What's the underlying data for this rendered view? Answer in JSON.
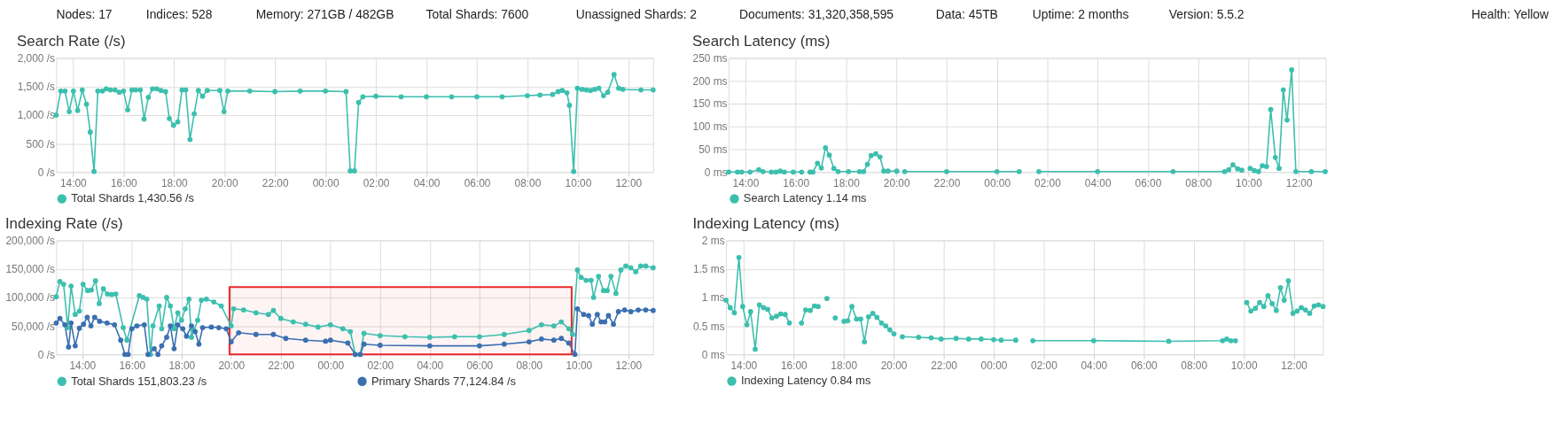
{
  "chart_data": [
    {
      "type": "other",
      "annotations": [
        "Nodes: 17",
        "Indices: 528",
        "Memory: 271GB / 482GB",
        "Total Shards: 7600",
        "Unassigned Shards: 2",
        "Documents: 31,320,358,595",
        "Data: 45TB",
        "Uptime: 2 months",
        "Version: 5.5.2",
        "Health: Yellow"
      ]
    },
    {
      "type": "line",
      "title": "Search Rate (/s)",
      "marker": "circle",
      "line_style": "solid",
      "grid": true,
      "legend": "bottom left",
      "xlim": [
        "2000-01-01T13:20",
        "2000-01-02T12:59"
      ],
      "ylim": [
        0,
        2000
      ],
      "xticks": [
        {
          "value": "2000-01-01T14:00",
          "label": "14:00"
        },
        {
          "value": "2000-01-01T16:00",
          "label": "16:00"
        },
        {
          "value": "2000-01-01T18:00",
          "label": "18:00"
        },
        {
          "value": "2000-01-01T20:00",
          "label": "20:00"
        },
        {
          "value": "2000-01-01T22:00",
          "label": "22:00"
        },
        {
          "value": "2000-01-02T00:00",
          "label": "00:00"
        },
        {
          "value": "2000-01-02T02:00",
          "label": "02:00"
        },
        {
          "value": "2000-01-02T04:00",
          "label": "04:00"
        },
        {
          "value": "2000-01-02T06:00",
          "label": "06:00"
        },
        {
          "value": "2000-01-02T08:00",
          "label": "08:00"
        },
        {
          "value": "2000-01-02T10:00",
          "label": "10:00"
        },
        {
          "value": "2000-01-02T12:00",
          "label": "12:00"
        }
      ],
      "yticks": [
        {
          "value": 0,
          "label": "0 /s"
        },
        {
          "value": 500,
          "label": "500 /s"
        },
        {
          "value": 1000,
          "label": "1,000 /s"
        },
        {
          "value": 1500,
          "label": "1,500 /s"
        },
        {
          "value": 2000,
          "label": "2,000 /s"
        }
      ],
      "x": [
        "2000-01-01T13:20",
        "2000-01-01T13:31",
        "2000-01-01T13:41",
        "2000-01-01T13:51",
        "2000-01-01T14:01",
        "2000-01-01T14:11",
        "2000-01-01T14:22",
        "2000-01-01T14:32",
        "2000-01-01T14:41",
        "2000-01-01T14:50",
        "2000-01-01T14:59",
        "2000-01-01T15:10",
        "2000-01-01T15:19",
        "2000-01-01T15:29",
        "2000-01-01T15:40",
        "2000-01-01T15:50",
        "2000-01-01T16:00",
        "2000-01-01T16:10",
        "2000-01-01T16:20",
        "2000-01-01T16:29",
        "2000-01-01T16:40",
        "2000-01-01T16:49",
        "2000-01-01T16:59",
        "2000-01-01T17:09",
        "2000-01-01T17:19",
        "2000-01-01T17:29",
        "2000-01-01T17:40",
        "2000-01-01T17:49",
        "2000-01-01T17:59",
        "2000-01-01T18:09",
        "2000-01-01T18:19",
        "2000-01-01T18:28",
        "2000-01-01T18:38",
        "2000-01-01T18:48",
        "2000-01-01T18:58",
        "2000-01-01T19:08",
        "2000-01-01T19:19",
        "2000-01-01T19:49",
        "2000-01-01T19:59",
        "2000-01-01T20:08",
        "2000-01-01T21:00",
        "2000-01-01T22:00",
        "2000-01-01T23:00",
        "2000-01-02T00:00",
        "2000-01-02T00:49",
        "2000-01-02T00:59",
        "2000-01-02T01:09",
        "2000-01-02T01:19",
        "2000-01-02T01:29",
        "2000-01-02T02:00",
        "2000-01-02T03:00",
        "2000-01-02T04:00",
        "2000-01-02T05:00",
        "2000-01-02T06:00",
        "2000-01-02T07:00",
        "2000-01-02T08:00",
        "2000-01-02T08:30",
        "2000-01-02T09:00",
        "2000-01-02T09:13",
        "2000-01-02T09:23",
        "2000-01-02T09:34",
        "2000-01-02T09:40",
        "2000-01-02T09:50",
        "2000-01-02T09:59",
        "2000-01-02T10:10",
        "2000-01-02T10:20",
        "2000-01-02T10:30",
        "2000-01-02T10:40",
        "2000-01-02T10:50",
        "2000-01-02T11:01",
        "2000-01-02T11:11",
        "2000-01-02T11:26",
        "2000-01-02T11:37",
        "2000-01-02T11:47",
        "2000-01-02T12:30",
        "2000-01-02T12:59"
      ],
      "series": [
        {
          "name": "Total Shards 1,430.56 /s",
          "color": "#3cbfae",
          "values": [
            1000,
            1420,
            1420,
            1060,
            1420,
            1080,
            1440,
            1190,
            700,
            10,
            1420,
            1420,
            1460,
            1440,
            1440,
            1400,
            1420,
            1090,
            1440,
            1440,
            1440,
            930,
            1310,
            1460,
            1460,
            1430,
            1410,
            940,
            820,
            880,
            1440,
            1440,
            570,
            1020,
            1430,
            1330,
            1430,
            1430,
            1060,
            1420,
            1420,
            1410,
            1420,
            1420,
            1410,
            20,
            20,
            1220,
            1320,
            1330,
            1320,
            1320,
            1320,
            1320,
            1320,
            1340,
            1350,
            1360,
            1410,
            1430,
            1390,
            1170,
            10,
            1470,
            1450,
            1440,
            1430,
            1450,
            1470,
            1340,
            1400,
            1710,
            1470,
            1450,
            1440,
            1440
          ]
        }
      ]
    },
    {
      "type": "line",
      "title": "Search Latency (ms)",
      "marker": "circle",
      "line_style": "solid",
      "grid": true,
      "legend": "bottom left",
      "xlim": [
        "2000-01-01T13:20",
        "2000-01-02T13:04"
      ],
      "ylim": [
        0,
        250
      ],
      "xticks": [
        {
          "value": "2000-01-01T14:00",
          "label": "14:00"
        },
        {
          "value": "2000-01-01T16:00",
          "label": "16:00"
        },
        {
          "value": "2000-01-01T18:00",
          "label": "18:00"
        },
        {
          "value": "2000-01-01T20:00",
          "label": "20:00"
        },
        {
          "value": "2000-01-01T22:00",
          "label": "22:00"
        },
        {
          "value": "2000-01-02T00:00",
          "label": "00:00"
        },
        {
          "value": "2000-01-02T02:00",
          "label": "02:00"
        },
        {
          "value": "2000-01-02T04:00",
          "label": "04:00"
        },
        {
          "value": "2000-01-02T06:00",
          "label": "06:00"
        },
        {
          "value": "2000-01-02T08:00",
          "label": "08:00"
        },
        {
          "value": "2000-01-02T10:00",
          "label": "10:00"
        },
        {
          "value": "2000-01-02T12:00",
          "label": "12:00"
        }
      ],
      "yticks": [
        {
          "value": 0,
          "label": "0 ms"
        },
        {
          "value": 50,
          "label": "50 ms"
        },
        {
          "value": 100,
          "label": "100 ms"
        },
        {
          "value": 150,
          "label": "150 ms"
        },
        {
          "value": 200,
          "label": "200 ms"
        },
        {
          "value": 250,
          "label": "250 ms"
        }
      ],
      "x": [
        "2000-01-01T13:20",
        "2000-01-01T13:41",
        "2000-01-01T13:51",
        "2000-01-01T14:11",
        "2000-01-01T14:32",
        "2000-01-01T14:42",
        "2000-01-01T15:02",
        "2000-01-01T15:13",
        "2000-01-01T15:23",
        "2000-01-01T15:33",
        "2000-01-01T15:54",
        "2000-01-01T16:14",
        "2000-01-01T16:24",
        "2000-01-01T16:34",
        "2000-01-01T16:41",
        "2000-01-01T16:52",
        "2000-01-01T17:01",
        "2000-01-01T17:11",
        "2000-01-01T17:20",
        "2000-01-01T17:31",
        "2000-01-01T17:41",
        "2000-01-01T18:06",
        "2000-01-01T18:32",
        "2000-01-01T18:42",
        "2000-01-01T18:51",
        "2000-01-01T19:00",
        "2000-01-01T19:11",
        "2000-01-01T19:21",
        "2000-01-01T19:30",
        "2000-01-01T19:40",
        "2000-01-01T20:01",
        "2000-01-01T20:10",
        "2000-01-01T20:20",
        "2000-01-01T22:00",
        "2000-01-02T00:00",
        "2000-01-02T00:53",
        "2000-01-02T01:12",
        "2000-01-02T01:40",
        "2000-01-02T04:00",
        "2000-01-02T07:00",
        "2000-01-02T09:03",
        "2000-01-02T09:13",
        "2000-01-02T09:23",
        "2000-01-02T09:34",
        "2000-01-02T09:44",
        "2000-01-02T09:54",
        "2000-01-02T10:04",
        "2000-01-02T10:14",
        "2000-01-02T10:24",
        "2000-01-02T10:33",
        "2000-01-02T10:43",
        "2000-01-02T10:53",
        "2000-01-02T11:04",
        "2000-01-02T11:13",
        "2000-01-02T11:23",
        "2000-01-02T11:32",
        "2000-01-02T11:43",
        "2000-01-02T11:53",
        "2000-01-02T12:30",
        "2000-01-02T13:03"
      ],
      "series": [
        {
          "name": "Search Latency 1.14 ms",
          "color": "#3cbfae",
          "values": [
            0,
            0,
            0,
            0,
            5,
            1,
            0,
            0,
            2,
            0,
            0,
            0,
            null,
            0,
            0,
            19,
            9,
            53,
            37,
            8,
            1,
            1,
            1,
            1,
            17,
            36,
            40,
            33,
            2,
            2,
            2,
            null,
            1,
            1,
            1,
            1,
            null,
            1,
            1,
            1,
            1,
            5,
            16,
            7,
            4,
            null,
            8,
            3,
            1,
            14,
            12,
            137,
            32,
            8,
            180,
            114,
            224,
            1,
            1,
            1
          ]
        }
      ]
    },
    {
      "type": "line",
      "title": "Indexing Rate (/s)",
      "marker": "circle",
      "line_style": "solid",
      "grid": true,
      "legend": "bottom left",
      "xlim": [
        "2000-01-01T12:57",
        "2000-01-02T13:00"
      ],
      "ylim": [
        0,
        200000
      ],
      "xticks": [
        {
          "value": "2000-01-01T14:00",
          "label": "14:00"
        },
        {
          "value": "2000-01-01T16:00",
          "label": "16:00"
        },
        {
          "value": "2000-01-01T18:00",
          "label": "18:00"
        },
        {
          "value": "2000-01-01T20:00",
          "label": "20:00"
        },
        {
          "value": "2000-01-01T22:00",
          "label": "22:00"
        },
        {
          "value": "2000-01-02T00:00",
          "label": "00:00"
        },
        {
          "value": "2000-01-02T02:00",
          "label": "02:00"
        },
        {
          "value": "2000-01-02T04:00",
          "label": "04:00"
        },
        {
          "value": "2000-01-02T06:00",
          "label": "06:00"
        },
        {
          "value": "2000-01-02T08:00",
          "label": "08:00"
        },
        {
          "value": "2000-01-02T10:00",
          "label": "10:00"
        },
        {
          "value": "2000-01-02T12:00",
          "label": "12:00"
        }
      ],
      "yticks": [
        {
          "value": 0,
          "label": "0 /s"
        },
        {
          "value": 50000,
          "label": "50,000 /s"
        },
        {
          "value": 100000,
          "label": "100,000 /s"
        },
        {
          "value": 150000,
          "label": "150,000 /s"
        },
        {
          "value": 200000,
          "label": "200,000 /s"
        }
      ],
      "bands": [
        {
          "axis": "x",
          "from": "2000-01-01T19:56",
          "to": "2000-01-02T09:43",
          "color": "#e8282b"
        }
      ],
      "series": [
        {
          "name": "Total Shards 151,803.23 /s",
          "color": "#3cbfae",
          "x": [
            "2000-01-01T12:57",
            "2000-01-01T13:06",
            "2000-01-01T13:15",
            "2000-01-01T13:25",
            "2000-01-01T13:33",
            "2000-01-01T13:43",
            "2000-01-01T13:53",
            "2000-01-01T14:02",
            "2000-01-01T14:13",
            "2000-01-01T14:22",
            "2000-01-01T14:32",
            "2000-01-01T14:41",
            "2000-01-01T14:51",
            "2000-01-01T15:01",
            "2000-01-01T15:11",
            "2000-01-01T15:21",
            "2000-01-01T15:39",
            "2000-01-01T15:48",
            "2000-01-01T16:18",
            "2000-01-01T16:27",
            "2000-01-01T16:36",
            "2000-01-01T16:45",
            "2000-01-01T16:51",
            "2000-01-01T17:06",
            "2000-01-01T17:12",
            "2000-01-01T17:24",
            "2000-01-01T17:33",
            "2000-01-01T17:42",
            "2000-01-01T17:51",
            "2000-01-01T18:00",
            "2000-01-01T18:09",
            "2000-01-01T18:18",
            "2000-01-01T18:24",
            "2000-01-01T18:30",
            "2000-01-01T18:39",
            "2000-01-01T18:48",
            "2000-01-01T19:00",
            "2000-01-01T19:18",
            "2000-01-01T19:36",
            "2000-01-01T20:00",
            "2000-01-01T20:06",
            "2000-01-01T20:30",
            "2000-01-01T21:00",
            "2000-01-01T21:30",
            "2000-01-01T21:42",
            "2000-01-01T22:00",
            "2000-01-01T22:30",
            "2000-01-01T23:00",
            "2000-01-01T23:30",
            "2000-01-02T00:00",
            "2000-01-02T00:30",
            "2000-01-02T00:48",
            "2000-01-02T01:00",
            "2000-01-02T01:12",
            "2000-01-02T01:21",
            "2000-01-02T02:00",
            "2000-01-02T03:00",
            "2000-01-02T04:00",
            "2000-01-02T05:00",
            "2000-01-02T06:00",
            "2000-01-02T07:00",
            "2000-01-02T08:00",
            "2000-01-02T08:30",
            "2000-01-02T09:00",
            "2000-01-02T09:18",
            "2000-01-02T09:36",
            "2000-01-02T09:45",
            "2000-01-02T09:57",
            "2000-01-02T10:06",
            "2000-01-02T10:18",
            "2000-01-02T10:30",
            "2000-01-02T10:36",
            "2000-01-02T10:48",
            "2000-01-02T11:00",
            "2000-01-02T11:09",
            "2000-01-02T11:18",
            "2000-01-02T11:30",
            "2000-01-02T11:42",
            "2000-01-02T11:54",
            "2000-01-02T12:06",
            "2000-01-02T12:18",
            "2000-01-02T12:30",
            "2000-01-02T12:42",
            "2000-01-02T13:00"
          ],
          "values": [
            101000,
            128000,
            123000,
            47000,
            120000,
            70000,
            76000,
            123000,
            112000,
            113000,
            129000,
            89000,
            115000,
            106000,
            105000,
            106000,
            47000,
            25000,
            103000,
            100000,
            97000,
            0,
            50000,
            85000,
            45000,
            100000,
            85000,
            45000,
            73000,
            60000,
            80000,
            97000,
            30000,
            42000,
            60000,
            95000,
            97000,
            92000,
            85000,
            50000,
            80000,
            78000,
            73000,
            70000,
            77000,
            63000,
            57000,
            53000,
            48000,
            52000,
            45000,
            40000,
            0,
            0,
            37000,
            33000,
            31000,
            30000,
            31000,
            31000,
            35000,
            42000,
            52000,
            50000,
            57000,
            45000,
            35000,
            148000,
            135000,
            130000,
            130000,
            100000,
            137000,
            112000,
            112000,
            137000,
            107000,
            148000,
            155000,
            152000,
            145000,
            155000,
            155000,
            152000
          ]
        },
        {
          "name": "Primary Shards 77,124.84 /s",
          "color": "#3a6fb0",
          "x": [
            "2000-01-01T12:57",
            "2000-01-01T13:06",
            "2000-01-01T13:18",
            "2000-01-01T13:27",
            "2000-01-01T13:33",
            "2000-01-01T13:43",
            "2000-01-01T13:53",
            "2000-01-01T14:03",
            "2000-01-01T14:12",
            "2000-01-01T14:21",
            "2000-01-01T14:30",
            "2000-01-01T14:42",
            "2000-01-01T15:00",
            "2000-01-01T15:18",
            "2000-01-01T15:33",
            "2000-01-01T15:43",
            "2000-01-01T15:51",
            "2000-01-01T16:00",
            "2000-01-01T16:12",
            "2000-01-01T16:30",
            "2000-01-01T16:39",
            "2000-01-01T16:54",
            "2000-01-01T17:03",
            "2000-01-01T17:12",
            "2000-01-01T17:24",
            "2000-01-01T17:33",
            "2000-01-01T17:42",
            "2000-01-01T17:51",
            "2000-01-01T18:03",
            "2000-01-01T18:12",
            "2000-01-01T18:24",
            "2000-01-01T18:33",
            "2000-01-01T18:42",
            "2000-01-01T18:51",
            "2000-01-01T19:12",
            "2000-01-01T19:30",
            "2000-01-01T19:48",
            "2000-01-01T20:00",
            "2000-01-01T20:18",
            "2000-01-01T21:00",
            "2000-01-01T21:42",
            "2000-01-01T22:12",
            "2000-01-01T23:00",
            "2000-01-01T23:48",
            "2000-01-02T00:00",
            "2000-01-02T00:42",
            "2000-01-02T01:00",
            "2000-01-02T01:12",
            "2000-01-02T01:21",
            "2000-01-02T02:00",
            "2000-01-02T04:00",
            "2000-01-02T06:00",
            "2000-01-02T07:00",
            "2000-01-02T08:00",
            "2000-01-02T08:30",
            "2000-01-02T09:00",
            "2000-01-02T09:18",
            "2000-01-02T09:36",
            "2000-01-02T09:51",
            "2000-01-02T09:57",
            "2000-01-02T10:12",
            "2000-01-02T10:24",
            "2000-01-02T10:33",
            "2000-01-02T10:45",
            "2000-01-02T10:54",
            "2000-01-02T11:03",
            "2000-01-02T11:12",
            "2000-01-02T11:24",
            "2000-01-02T11:36",
            "2000-01-02T11:51",
            "2000-01-02T12:06",
            "2000-01-02T12:24",
            "2000-01-02T12:42",
            "2000-01-02T13:00"
          ],
          "values": [
            55000,
            63000,
            52000,
            13000,
            55000,
            15000,
            46000,
            53000,
            65000,
            50000,
            65000,
            58000,
            55000,
            52000,
            25000,
            0,
            0,
            45000,
            50000,
            52000,
            0,
            10000,
            0,
            15000,
            30000,
            50000,
            10000,
            52000,
            45000,
            32000,
            50000,
            40000,
            18000,
            47000,
            48000,
            47000,
            45000,
            22000,
            38000,
            35000,
            35000,
            28000,
            25000,
            23000,
            25000,
            20000,
            0,
            0,
            18000,
            16000,
            15000,
            15000,
            18000,
            22000,
            27000,
            25000,
            28000,
            20000,
            0,
            80000,
            70000,
            68000,
            53000,
            70000,
            57000,
            57000,
            68000,
            53000,
            75000,
            78000,
            75000,
            78000,
            78000,
            77000
          ]
        }
      ]
    },
    {
      "type": "line",
      "title": "Indexing Latency (ms)",
      "marker": "circle",
      "line_style": "solid",
      "grid": true,
      "legend": "bottom left",
      "xlim": [
        "2000-01-01T13:18",
        "2000-01-02T13:10"
      ],
      "ylim": [
        0,
        2
      ],
      "xticks": [
        {
          "value": "2000-01-01T14:00",
          "label": "14:00"
        },
        {
          "value": "2000-01-01T16:00",
          "label": "16:00"
        },
        {
          "value": "2000-01-01T18:00",
          "label": "18:00"
        },
        {
          "value": "2000-01-01T20:00",
          "label": "20:00"
        },
        {
          "value": "2000-01-01T22:00",
          "label": "22:00"
        },
        {
          "value": "2000-01-02T00:00",
          "label": "00:00"
        },
        {
          "value": "2000-01-02T02:00",
          "label": "02:00"
        },
        {
          "value": "2000-01-02T04:00",
          "label": "04:00"
        },
        {
          "value": "2000-01-02T06:00",
          "label": "06:00"
        },
        {
          "value": "2000-01-02T08:00",
          "label": "08:00"
        },
        {
          "value": "2000-01-02T10:00",
          "label": "10:00"
        },
        {
          "value": "2000-01-02T12:00",
          "label": "12:00"
        }
      ],
      "yticks": [
        {
          "value": 0,
          "label": "0 ms"
        },
        {
          "value": 0.5,
          "label": "0.5 ms"
        },
        {
          "value": 1,
          "label": "1 ms"
        },
        {
          "value": 1.5,
          "label": "1.5 ms"
        },
        {
          "value": 2,
          "label": "2 ms"
        }
      ],
      "x": [
        "2000-01-01T13:18",
        "2000-01-01T13:28",
        "2000-01-01T13:38",
        "2000-01-01T13:49",
        "2000-01-01T13:58",
        "2000-01-01T14:08",
        "2000-01-01T14:17",
        "2000-01-01T14:28",
        "2000-01-01T14:38",
        "2000-01-01T14:48",
        "2000-01-01T14:58",
        "2000-01-01T15:08",
        "2000-01-01T15:19",
        "2000-01-01T15:29",
        "2000-01-01T15:40",
        "2000-01-01T15:50",
        "2000-01-01T16:00",
        "2000-01-01T16:19",
        "2000-01-01T16:29",
        "2000-01-01T16:40",
        "2000-01-01T16:50",
        "2000-01-01T16:59",
        "2000-01-01T17:10",
        "2000-01-01T17:20",
        "2000-01-01T17:30",
        "2000-01-01T17:40",
        "2000-01-01T17:50",
        "2000-01-01T18:01",
        "2000-01-01T18:10",
        "2000-01-01T18:20",
        "2000-01-01T18:31",
        "2000-01-01T18:41",
        "2000-01-01T18:50",
        "2000-01-01T19:00",
        "2000-01-01T19:10",
        "2000-01-01T19:20",
        "2000-01-01T19:31",
        "2000-01-01T19:41",
        "2000-01-01T19:51",
        "2000-01-01T20:01",
        "2000-01-01T20:11",
        "2000-01-01T20:21",
        "2000-01-01T21:00",
        "2000-01-01T21:30",
        "2000-01-01T21:54",
        "2000-01-01T22:30",
        "2000-01-01T23:00",
        "2000-01-01T23:30",
        "2000-01-02T00:00",
        "2000-01-02T00:18",
        "2000-01-02T00:53",
        "2000-01-02T01:12",
        "2000-01-02T01:34",
        "2000-01-02T04:00",
        "2000-01-02T07:00",
        "2000-01-02T09:09",
        "2000-01-02T09:19",
        "2000-01-02T09:29",
        "2000-01-02T09:40",
        "2000-01-02T09:54",
        "2000-01-02T10:07",
        "2000-01-02T10:17",
        "2000-01-02T10:28",
        "2000-01-02T10:38",
        "2000-01-02T10:48",
        "2000-01-02T10:58",
        "2000-01-02T11:08",
        "2000-01-02T11:18",
        "2000-01-02T11:28",
        "2000-01-02T11:37",
        "2000-01-02T11:47",
        "2000-01-02T11:58",
        "2000-01-02T12:08",
        "2000-01-02T12:18",
        "2000-01-02T12:28",
        "2000-01-02T12:38",
        "2000-01-02T12:49",
        "2000-01-02T12:59",
        "2000-01-02T13:10"
      ],
      "series": [
        {
          "name": "Indexing Latency 0.84 ms",
          "color": "#3cbfae",
          "values": [
            0.95,
            0.82,
            0.73,
            1.7,
            0.84,
            0.52,
            0.75,
            0.09,
            0.87,
            0.82,
            0.79,
            0.64,
            0.67,
            0.71,
            0.7,
            0.55,
            null,
            0.55,
            0.78,
            0.77,
            0.85,
            0.84,
            null,
            0.98,
            null,
            0.64,
            null,
            0.58,
            0.59,
            0.84,
            0.62,
            0.62,
            0.22,
            0.66,
            0.72,
            0.65,
            0.55,
            0.5,
            0.43,
            0.36,
            null,
            0.31,
            0.3,
            0.29,
            0.27,
            0.28,
            0.27,
            0.27,
            0.26,
            0.25,
            0.25,
            null,
            0.24,
            0.24,
            0.23,
            0.24,
            0.27,
            0.24,
            0.24,
            null,
            0.91,
            0.76,
            0.81,
            0.91,
            0.84,
            1.03,
            0.89,
            0.77,
            1.17,
            0.95,
            1.29,
            0.72,
            0.76,
            0.82,
            0.78,
            0.72,
            0.85,
            0.87,
            0.84
          ]
        }
      ]
    }
  ]
}
